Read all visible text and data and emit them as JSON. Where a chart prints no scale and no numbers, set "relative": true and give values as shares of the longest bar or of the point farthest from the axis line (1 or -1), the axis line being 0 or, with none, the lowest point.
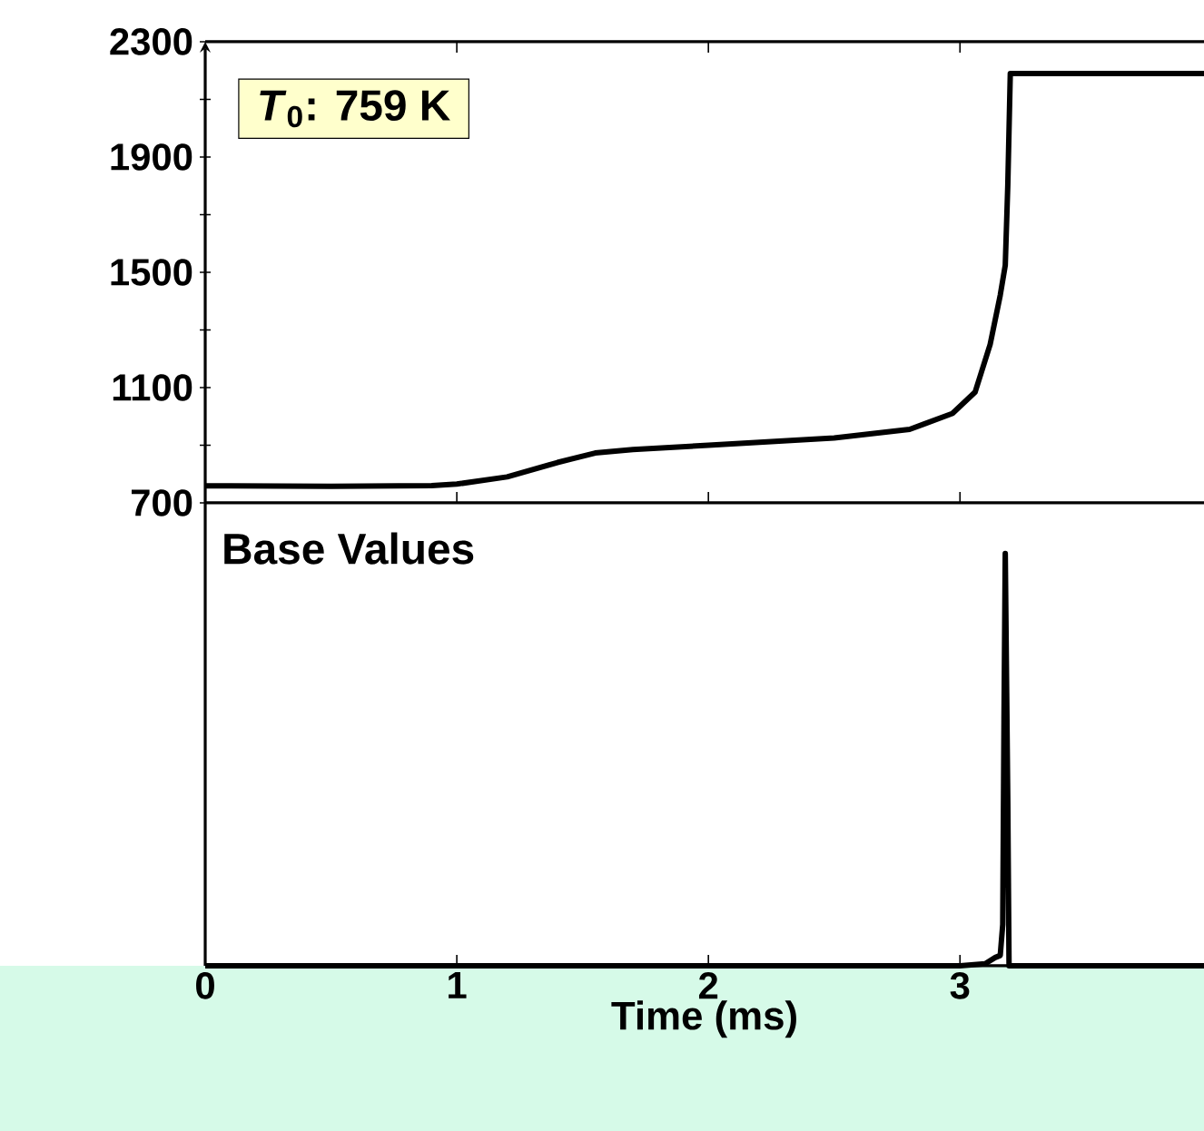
{
  "chart_data": [
    {
      "type": "line",
      "ylabel": null,
      "xlim": [
        0,
        3.97
      ],
      "ylim": [
        700,
        2300
      ],
      "xticks": [
        {
          "value": 1,
          "label": null
        },
        {
          "value": 2,
          "label": null
        },
        {
          "value": 3,
          "label": null
        }
      ],
      "yticks": [
        700,
        {
          "value": 900,
          "label": null
        },
        1100,
        {
          "value": 1300,
          "label": null
        },
        1500,
        {
          "value": 1700,
          "label": null
        },
        1900,
        {
          "value": 2100,
          "label": null
        },
        2300
      ],
      "tick_labels": "y",
      "annotations": [
        "*T*$_{0}$: 759 K"
      ],
      "series": [
        {
          "color": "#000000",
          "x": [
            0,
            0.5,
            0.9,
            1.0,
            1.2,
            1.4,
            1.55,
            1.7,
            2.0,
            2.5,
            2.8,
            2.97,
            3.06,
            3.12,
            3.16,
            3.18,
            3.19,
            3.2,
            3.97
          ],
          "values": [
            759,
            757,
            760,
            765,
            790,
            840,
            873,
            885,
            900,
            925,
            955,
            1010,
            1084,
            1250,
            1420,
            1524,
            1800,
            2190,
            2190
          ]
        }
      ]
    },
    {
      "type": "line",
      "relative": true,
      "xlabel": "Time (ms)",
      "xlim": [
        0,
        3.97
      ],
      "xticks": [
        0,
        1,
        2,
        3
      ],
      "tick_labels": "x",
      "annotations": [
        "Base Values"
      ],
      "series": [
        {
          "color": "#000000",
          "x": [
            0,
            3.0,
            3.1,
            3.14,
            3.16,
            3.17,
            3.175,
            3.18,
            3.19,
            3.195,
            3.97
          ],
          "values": [
            0,
            0,
            0.005,
            0.02,
            0.025,
            0.1,
            0.6,
            1,
            0.4,
            0,
            0
          ]
        }
      ]
    }
  ]
}
